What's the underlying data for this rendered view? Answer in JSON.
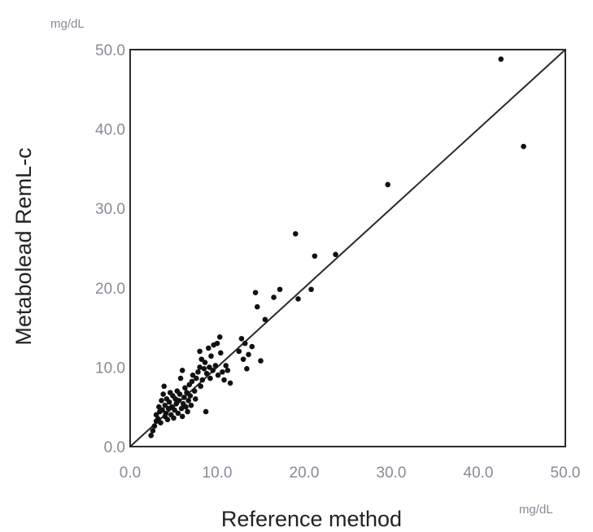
{
  "chart_data": {
    "type": "scatter",
    "title": "",
    "xlabel": "Reference method",
    "ylabel": "Metabolead RemL-c",
    "x_unit": "mg/dL",
    "y_unit": "mg/dL",
    "xlim": [
      0,
      50
    ],
    "ylim": [
      0,
      50
    ],
    "x_ticks": [
      "0.0",
      "10.0",
      "20.0",
      "30.0",
      "40.0",
      "50.0"
    ],
    "y_ticks": [
      "0.0",
      "10.0",
      "20.0",
      "30.0",
      "40.0",
      "50.0"
    ],
    "grid": false,
    "reference_line": {
      "x": [
        0,
        50
      ],
      "y": [
        0,
        50
      ]
    },
    "marker_color": "#111111",
    "series": [
      {
        "points": [
          [
            2.4,
            1.4
          ],
          [
            2.6,
            2.0
          ],
          [
            2.8,
            2.6
          ],
          [
            3.0,
            3.2
          ],
          [
            3.0,
            4.0
          ],
          [
            3.2,
            3.5
          ],
          [
            3.3,
            5.0
          ],
          [
            3.4,
            4.4
          ],
          [
            3.5,
            3.0
          ],
          [
            3.6,
            5.8
          ],
          [
            3.7,
            4.6
          ],
          [
            3.8,
            6.6
          ],
          [
            3.9,
            7.6
          ],
          [
            4.0,
            3.8
          ],
          [
            4.0,
            5.2
          ],
          [
            4.1,
            4.2
          ],
          [
            4.2,
            6.0
          ],
          [
            4.3,
            3.4
          ],
          [
            4.4,
            4.8
          ],
          [
            4.5,
            5.6
          ],
          [
            4.6,
            6.8
          ],
          [
            4.7,
            4.0
          ],
          [
            4.8,
            5.0
          ],
          [
            4.9,
            6.4
          ],
          [
            5.0,
            3.6
          ],
          [
            5.1,
            4.6
          ],
          [
            5.2,
            6.0
          ],
          [
            5.3,
            5.4
          ],
          [
            5.4,
            7.0
          ],
          [
            5.5,
            4.2
          ],
          [
            5.6,
            5.8
          ],
          [
            5.7,
            6.6
          ],
          [
            5.8,
            8.6
          ],
          [
            5.9,
            4.8
          ],
          [
            6.0,
            3.8
          ],
          [
            6.0,
            9.6
          ],
          [
            6.1,
            5.4
          ],
          [
            6.2,
            6.2
          ],
          [
            6.3,
            7.4
          ],
          [
            6.4,
            5.0
          ],
          [
            6.5,
            6.8
          ],
          [
            6.6,
            4.4
          ],
          [
            6.7,
            5.8
          ],
          [
            6.8,
            7.8
          ],
          [
            6.9,
            6.4
          ],
          [
            7.0,
            5.2
          ],
          [
            7.1,
            8.2
          ],
          [
            7.2,
            9.0
          ],
          [
            7.4,
            7.0
          ],
          [
            7.5,
            6.0
          ],
          [
            7.6,
            8.6
          ],
          [
            7.8,
            9.4
          ],
          [
            8.0,
            10.0
          ],
          [
            8.0,
            12.0
          ],
          [
            8.1,
            7.6
          ],
          [
            8.2,
            11.0
          ],
          [
            8.3,
            8.4
          ],
          [
            8.5,
            9.8
          ],
          [
            8.6,
            10.6
          ],
          [
            8.7,
            4.4
          ],
          [
            8.8,
            9.2
          ],
          [
            9.0,
            12.4
          ],
          [
            9.1,
            10.0
          ],
          [
            9.2,
            8.6
          ],
          [
            9.3,
            11.4
          ],
          [
            9.5,
            9.6
          ],
          [
            9.6,
            12.8
          ],
          [
            9.8,
            10.2
          ],
          [
            10.0,
            13.0
          ],
          [
            10.1,
            9.0
          ],
          [
            10.3,
            13.8
          ],
          [
            10.4,
            11.8
          ],
          [
            10.6,
            9.4
          ],
          [
            10.8,
            8.4
          ],
          [
            11.0,
            10.2
          ],
          [
            11.2,
            9.6
          ],
          [
            11.5,
            8.0
          ],
          [
            12.5,
            12.0
          ],
          [
            12.8,
            13.6
          ],
          [
            13.0,
            11.0
          ],
          [
            13.2,
            13.0
          ],
          [
            13.4,
            9.8
          ],
          [
            13.6,
            11.6
          ],
          [
            14.0,
            12.6
          ],
          [
            14.4,
            19.4
          ],
          [
            14.6,
            17.6
          ],
          [
            15.0,
            10.8
          ],
          [
            15.5,
            16.0
          ],
          [
            16.5,
            18.8
          ],
          [
            17.2,
            19.8
          ],
          [
            19.0,
            26.8
          ],
          [
            19.3,
            18.6
          ],
          [
            20.8,
            19.8
          ],
          [
            21.2,
            24.0
          ],
          [
            23.6,
            24.2
          ],
          [
            29.6,
            33.0
          ],
          [
            42.6,
            48.8
          ],
          [
            45.2,
            37.8
          ]
        ]
      }
    ]
  }
}
